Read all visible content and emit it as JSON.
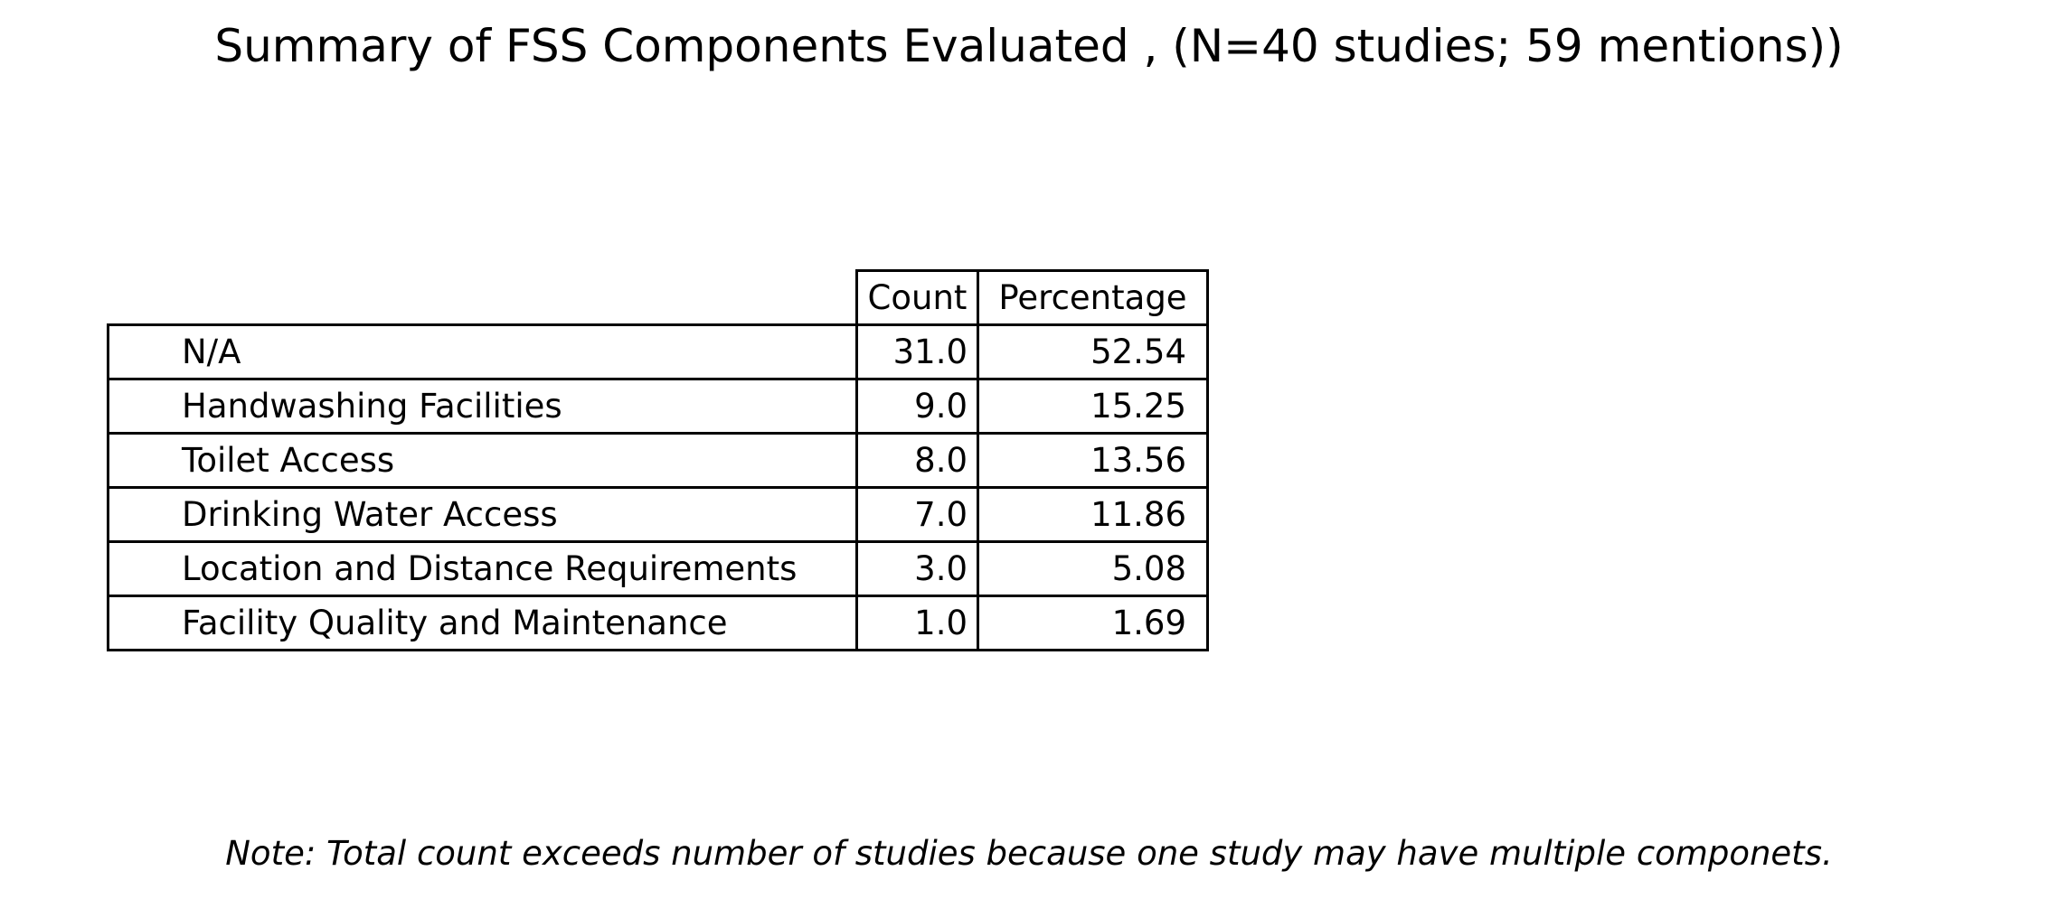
{
  "chart_data": {
    "type": "table",
    "title": "Summary of FSS Components Evaluated , (N=40 studies; 59 mentions))",
    "columns": [
      "Count",
      "Percentage"
    ],
    "rows": [
      {
        "label": "N/A",
        "count": "31.0",
        "percentage": "52.54"
      },
      {
        "label": "Handwashing Facilities",
        "count": "9.0",
        "percentage": "15.25"
      },
      {
        "label": "Toilet Access",
        "count": "8.0",
        "percentage": "13.56"
      },
      {
        "label": "Drinking Water Access",
        "count": "7.0",
        "percentage": "11.86"
      },
      {
        "label": "Location and Distance Requirements",
        "count": "3.0",
        "percentage": "5.08"
      },
      {
        "label": "Facility Quality and Maintenance",
        "count": "1.0",
        "percentage": "1.69"
      }
    ],
    "note": "Note: Total count exceeds number of studies because one study may have multiple componets."
  }
}
